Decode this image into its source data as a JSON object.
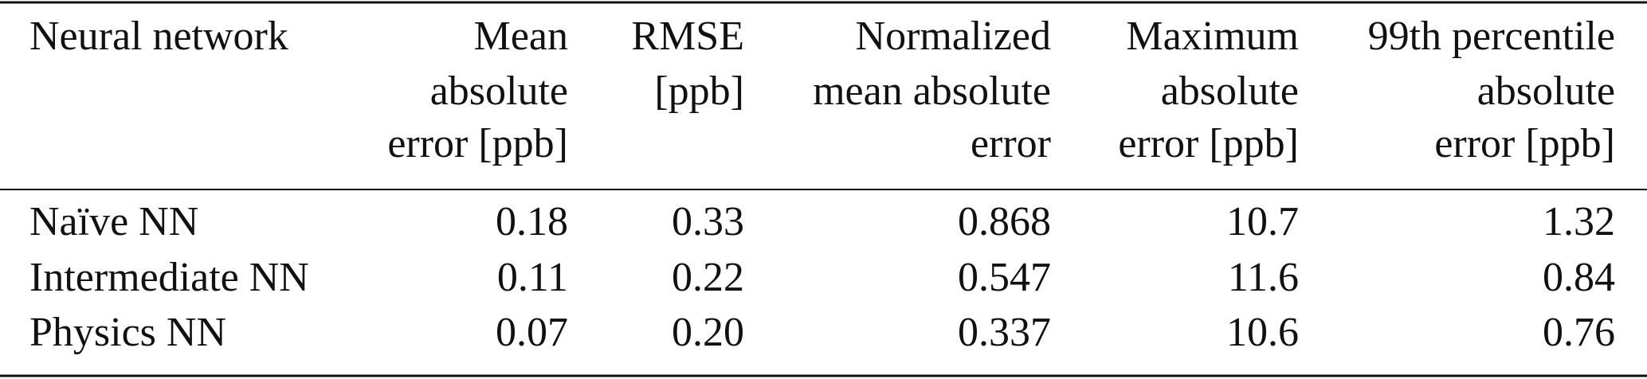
{
  "table": {
    "header": [
      [
        "Neural network"
      ],
      [
        "Mean",
        "absolute",
        "error [ppb]"
      ],
      [
        "RMSE",
        "[ppb]"
      ],
      [
        "Normalized",
        "mean absolute",
        "error"
      ],
      [
        "Maximum",
        "absolute",
        "error [ppb]"
      ],
      [
        "99th percentile",
        "absolute",
        "error [ppb]"
      ]
    ],
    "rows": [
      [
        "Naïve NN",
        "0.18",
        "0.33",
        "0.868",
        "10.7",
        "1.32"
      ],
      [
        "Intermediate NN",
        "0.11",
        "0.22",
        "0.547",
        "11.6",
        "0.84"
      ],
      [
        "Physics NN",
        "0.07",
        "0.20",
        "0.337",
        "10.6",
        "0.76"
      ]
    ]
  }
}
